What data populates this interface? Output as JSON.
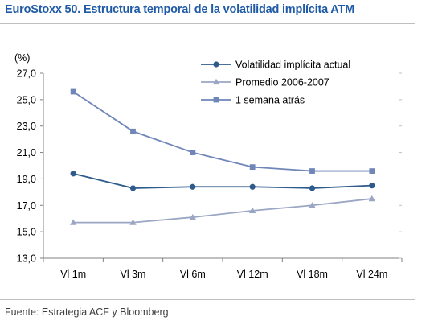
{
  "header": {
    "title": "EuroStoxx 50. Estructura temporal de la volatilidad implícita ATM"
  },
  "footer": {
    "source": "Fuente: Estrategia ACF y Bloomberg"
  },
  "chart_data": {
    "type": "line",
    "title": "EuroStoxx 50. Estructura temporal de la volatilidad implícita ATM",
    "unit_label": "(%)",
    "xlabel": "",
    "ylabel": "",
    "categories": [
      "Vl 1m",
      "Vl 3m",
      "Vl 6m",
      "Vl 12m",
      "Vl 18m",
      "Vl 24m"
    ],
    "ylim": [
      13.0,
      27.0
    ],
    "yticks": [
      "13,0",
      "15,0",
      "17,0",
      "19,0",
      "21,0",
      "23,0",
      "25,0",
      "27,0"
    ],
    "grid": false,
    "legend_position": "top-right",
    "series": [
      {
        "name": "Volatilidad implícita actual",
        "marker": "circle",
        "color": "#2e5b8c",
        "values": [
          19.4,
          18.3,
          18.4,
          18.4,
          18.3,
          18.5
        ]
      },
      {
        "name": "Promedio 2006-2007",
        "marker": "triangle",
        "color": "#9aa6c4",
        "values": [
          15.7,
          15.7,
          16.1,
          16.6,
          17.0,
          17.5
        ]
      },
      {
        "name": "1 semana atrás",
        "marker": "square",
        "color": "#6f86b8",
        "values": [
          25.6,
          22.6,
          21.0,
          19.9,
          19.6,
          19.6
        ]
      }
    ]
  }
}
